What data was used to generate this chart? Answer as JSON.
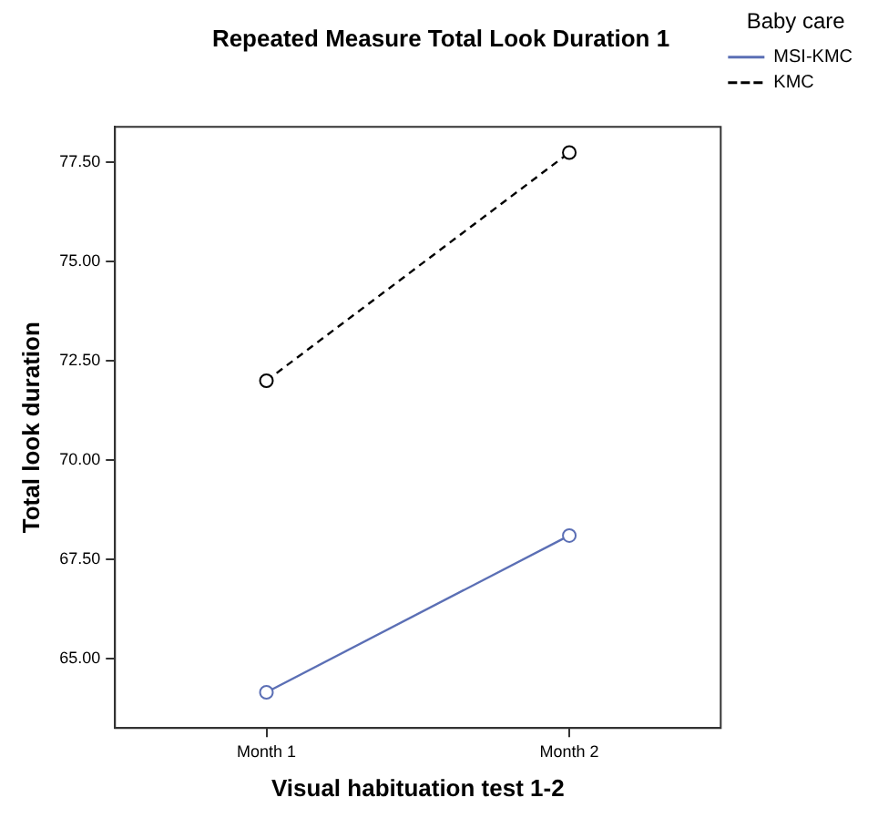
{
  "chart_data": {
    "type": "line",
    "title": "Repeated Measure Total Look Duration 1",
    "xlabel": "Visual habituation test 1-2",
    "ylabel": "Total look duration",
    "legend_title": "Baby care",
    "categories": [
      "Month 1",
      "Month 2"
    ],
    "series": [
      {
        "name": "MSI-KMC",
        "color": "#5b6fb5",
        "values": [
          64.15,
          68.1
        ],
        "line_style": "solid"
      },
      {
        "name": "KMC",
        "color": "#000000",
        "values": [
          72.0,
          77.75
        ],
        "line_style": "dashed"
      }
    ],
    "ylim": [
      63.25,
      78.4
    ],
    "yticks": [
      {
        "value": 65,
        "label": "65.00"
      },
      {
        "value": 67.5,
        "label": "67.50"
      },
      {
        "value": 70,
        "label": "70.00"
      },
      {
        "value": 72.5,
        "label": "72.50"
      },
      {
        "value": 75,
        "label": "75.00"
      },
      {
        "value": 77.5,
        "label": "77.50"
      }
    ],
    "grid": false,
    "legend": "top right",
    "marker": "circle"
  }
}
